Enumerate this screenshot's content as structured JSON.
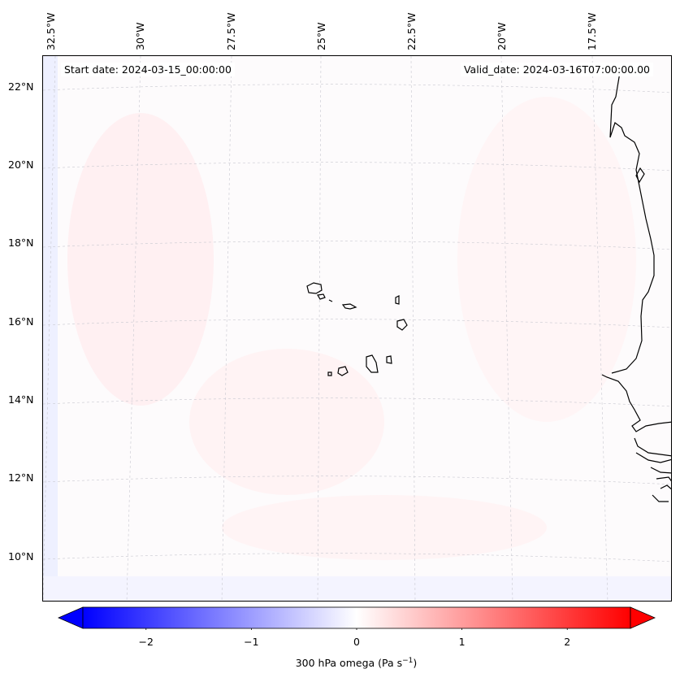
{
  "map": {
    "start_date": "Start date: 2024-03-15_00:00:00",
    "valid_date": "Valid_date: 2024-03-16T07:00:00.00",
    "lon_labels": [
      "32.5°W",
      "30°W",
      "27.5°W",
      "25°W",
      "22.5°W",
      "20°W",
      "17.5°W"
    ],
    "lat_labels": [
      "22°N",
      "20°N",
      "18°N",
      "16°N",
      "14°N",
      "12°N",
      "10°N"
    ],
    "features": [
      "Cape Verde islands",
      "West African coastline"
    ]
  },
  "colorbar": {
    "label": "300 hPa omega (Pa s",
    "label_exp": "−1",
    "label_close": ")",
    "ticks": [
      "−2",
      "−1",
      "0",
      "1",
      "2"
    ],
    "range": [
      -2.6,
      2.6
    ],
    "colormap": "bwr",
    "colors": {
      "min": "#0000ff",
      "mid": "#ffffff",
      "max": "#ff0000"
    }
  }
}
